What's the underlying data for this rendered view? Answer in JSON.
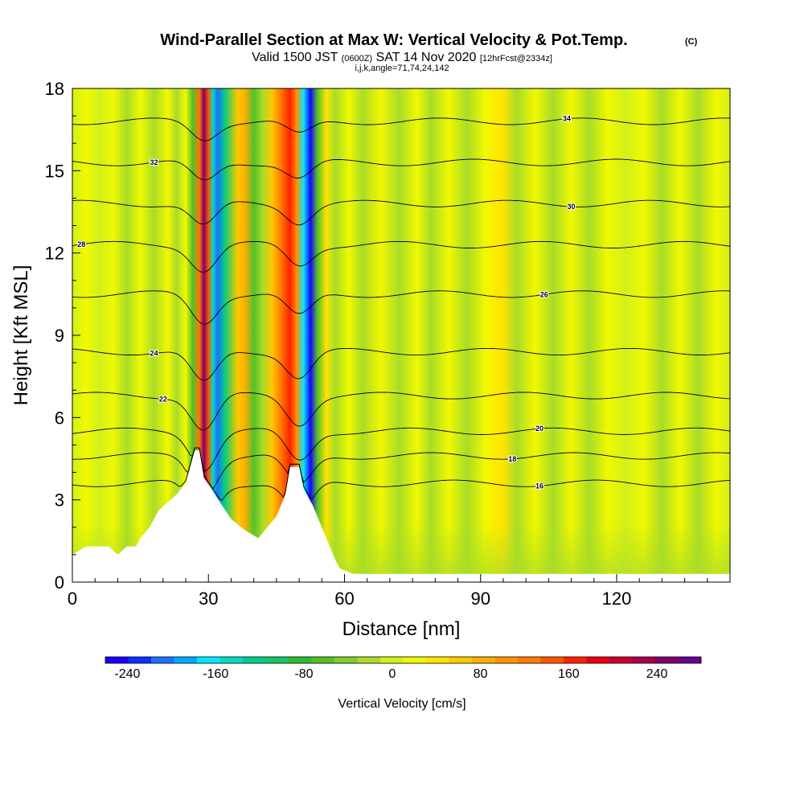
{
  "chart_data": {
    "type": "heatmap",
    "title": "Wind-Parallel Section at Max W: Vertical Velocity & Pot.Temp.",
    "title_mark": "(C)",
    "subtitle_parts": [
      "Valid 1500 JST",
      "(0600Z)",
      "SAT 14 Nov 2020",
      "[12hrFcst@2334z]"
    ],
    "subtitle_small": "i,j,k,angle=71,74,24,142",
    "xlabel": "Distance [nm]",
    "ylabel": "Height [Kft MSL]",
    "xlim": [
      0,
      145
    ],
    "ylim": [
      0,
      18
    ],
    "x_ticks": [
      0,
      30,
      60,
      90,
      120
    ],
    "x_tick_labels": [
      "0",
      "30",
      "60",
      "90",
      "120"
    ],
    "y_ticks": [
      0,
      3,
      6,
      9,
      12,
      15,
      18
    ],
    "y_tick_labels": [
      "0",
      "3",
      "6",
      "9",
      "12",
      "15",
      "18"
    ],
    "colorbar": {
      "label": "Vertical Velocity [cm/s]",
      "tick_values": [
        -240,
        -160,
        -80,
        0,
        80,
        160,
        240
      ],
      "tick_labels": [
        "-240",
        "-160",
        "-80",
        "0",
        "80",
        "160",
        "240"
      ],
      "min": -260,
      "max": 280,
      "colors": [
        "#1a00ff",
        "#0a30ff",
        "#1e70ff",
        "#00a8ff",
        "#00e8ff",
        "#00ddc0",
        "#00cc88",
        "#17c466",
        "#30b830",
        "#53c02a",
        "#80cc30",
        "#a8dc28",
        "#d2f01a",
        "#f2f800",
        "#ffe400",
        "#ffc800",
        "#ffae00",
        "#ff9400",
        "#ff7a00",
        "#ff5400",
        "#ff2000",
        "#ee0010",
        "#c80030",
        "#a8004c",
        "#80006a",
        "#680090"
      ]
    },
    "terrain": [
      {
        "x": 0,
        "y": 1.0
      },
      {
        "x": 3,
        "y": 1.3
      },
      {
        "x": 8,
        "y": 1.3
      },
      {
        "x": 10,
        "y": 1.0
      },
      {
        "x": 12,
        "y": 1.3
      },
      {
        "x": 14,
        "y": 1.3
      },
      {
        "x": 15,
        "y": 1.6
      },
      {
        "x": 17,
        "y": 2.0
      },
      {
        "x": 19,
        "y": 2.6
      },
      {
        "x": 21,
        "y": 2.9
      },
      {
        "x": 23,
        "y": 3.2
      },
      {
        "x": 25,
        "y": 3.6
      },
      {
        "x": 26,
        "y": 4.2
      },
      {
        "x": 27,
        "y": 4.8
      },
      {
        "x": 28,
        "y": 4.8
      },
      {
        "x": 29,
        "y": 3.8
      },
      {
        "x": 31,
        "y": 3.3
      },
      {
        "x": 33,
        "y": 2.8
      },
      {
        "x": 35,
        "y": 2.3
      },
      {
        "x": 38,
        "y": 1.9
      },
      {
        "x": 41,
        "y": 1.6
      },
      {
        "x": 43,
        "y": 2.0
      },
      {
        "x": 45,
        "y": 2.4
      },
      {
        "x": 47,
        "y": 3.2
      },
      {
        "x": 48,
        "y": 4.2
      },
      {
        "x": 50,
        "y": 4.2
      },
      {
        "x": 51,
        "y": 3.4
      },
      {
        "x": 53,
        "y": 2.8
      },
      {
        "x": 55,
        "y": 2.0
      },
      {
        "x": 56,
        "y": 1.6
      },
      {
        "x": 57,
        "y": 1.2
      },
      {
        "x": 58,
        "y": 0.8
      },
      {
        "x": 59,
        "y": 0.5
      },
      {
        "x": 62,
        "y": 0.3
      },
      {
        "x": 145,
        "y": 0.3
      }
    ],
    "columns": [
      {
        "x": 0,
        "w": 0
      },
      {
        "x": 3,
        "w": 10
      },
      {
        "x": 6,
        "w": -8
      },
      {
        "x": 9,
        "w": 15
      },
      {
        "x": 12,
        "w": -15
      },
      {
        "x": 15,
        "w": 10
      },
      {
        "x": 18,
        "w": -20
      },
      {
        "x": 21,
        "w": 25
      },
      {
        "x": 23,
        "w": -30
      },
      {
        "x": 25,
        "w": 20
      },
      {
        "x": 26.5,
        "w": -60
      },
      {
        "x": 28,
        "w": 120
      },
      {
        "x": 29,
        "w": 240
      },
      {
        "x": 30,
        "w": 140
      },
      {
        "x": 31,
        "w": -150
      },
      {
        "x": 32,
        "w": -200
      },
      {
        "x": 33.5,
        "w": -120
      },
      {
        "x": 35,
        "w": -40
      },
      {
        "x": 36.5,
        "w": 60
      },
      {
        "x": 38,
        "w": 80
      },
      {
        "x": 40,
        "w": -60
      },
      {
        "x": 42,
        "w": -30
      },
      {
        "x": 44,
        "w": 70
      },
      {
        "x": 46,
        "w": 130
      },
      {
        "x": 48,
        "w": 160
      },
      {
        "x": 49.5,
        "w": 100
      },
      {
        "x": 51,
        "w": -160
      },
      {
        "x": 52.5,
        "w": -240
      },
      {
        "x": 54,
        "w": -70
      },
      {
        "x": 56,
        "w": 40
      },
      {
        "x": 58,
        "w": -30
      },
      {
        "x": 61,
        "w": 20
      },
      {
        "x": 64,
        "w": -20
      },
      {
        "x": 68,
        "w": 15
      },
      {
        "x": 72,
        "w": -15
      },
      {
        "x": 76,
        "w": 30
      },
      {
        "x": 79,
        "w": -20
      },
      {
        "x": 83,
        "w": 25
      },
      {
        "x": 87,
        "w": -15
      },
      {
        "x": 91,
        "w": 20
      },
      {
        "x": 95,
        "w": 35
      },
      {
        "x": 98,
        "w": -20
      },
      {
        "x": 102,
        "w": 30
      },
      {
        "x": 106,
        "w": -15
      },
      {
        "x": 110,
        "w": 20
      },
      {
        "x": 114,
        "w": -20
      },
      {
        "x": 118,
        "w": 25
      },
      {
        "x": 122,
        "w": -10
      },
      {
        "x": 126,
        "w": 20
      },
      {
        "x": 130,
        "w": -15
      },
      {
        "x": 134,
        "w": 20
      },
      {
        "x": 138,
        "w": -15
      },
      {
        "x": 142,
        "w": 15
      },
      {
        "x": 145,
        "w": 0
      }
    ],
    "theta_levels": [
      {
        "value": 16,
        "base": 3.6,
        "label": "16",
        "label_x": 103
      },
      {
        "value": 18,
        "base": 4.6,
        "label": "18",
        "label_x": 97
      },
      {
        "value": 20,
        "base": 5.5,
        "label": "20",
        "label_x": 103
      },
      {
        "value": 22,
        "base": 6.8,
        "label": "22",
        "label_x": 20
      },
      {
        "value": 24,
        "base": 8.4,
        "label": "24",
        "label_x": 18
      },
      {
        "value": 26,
        "base": 10.5,
        "label": "26",
        "label_x": 104
      },
      {
        "value": 28,
        "base": 12.3,
        "label": "28",
        "label_x": 2
      },
      {
        "value": 30,
        "base": 13.8,
        "label": "30",
        "label_x": 110
      },
      {
        "value": 32,
        "base": 15.3,
        "label": "32",
        "label_x": 18
      },
      {
        "value": 34,
        "base": 16.8,
        "label": "34",
        "label_x": 109
      }
    ]
  }
}
